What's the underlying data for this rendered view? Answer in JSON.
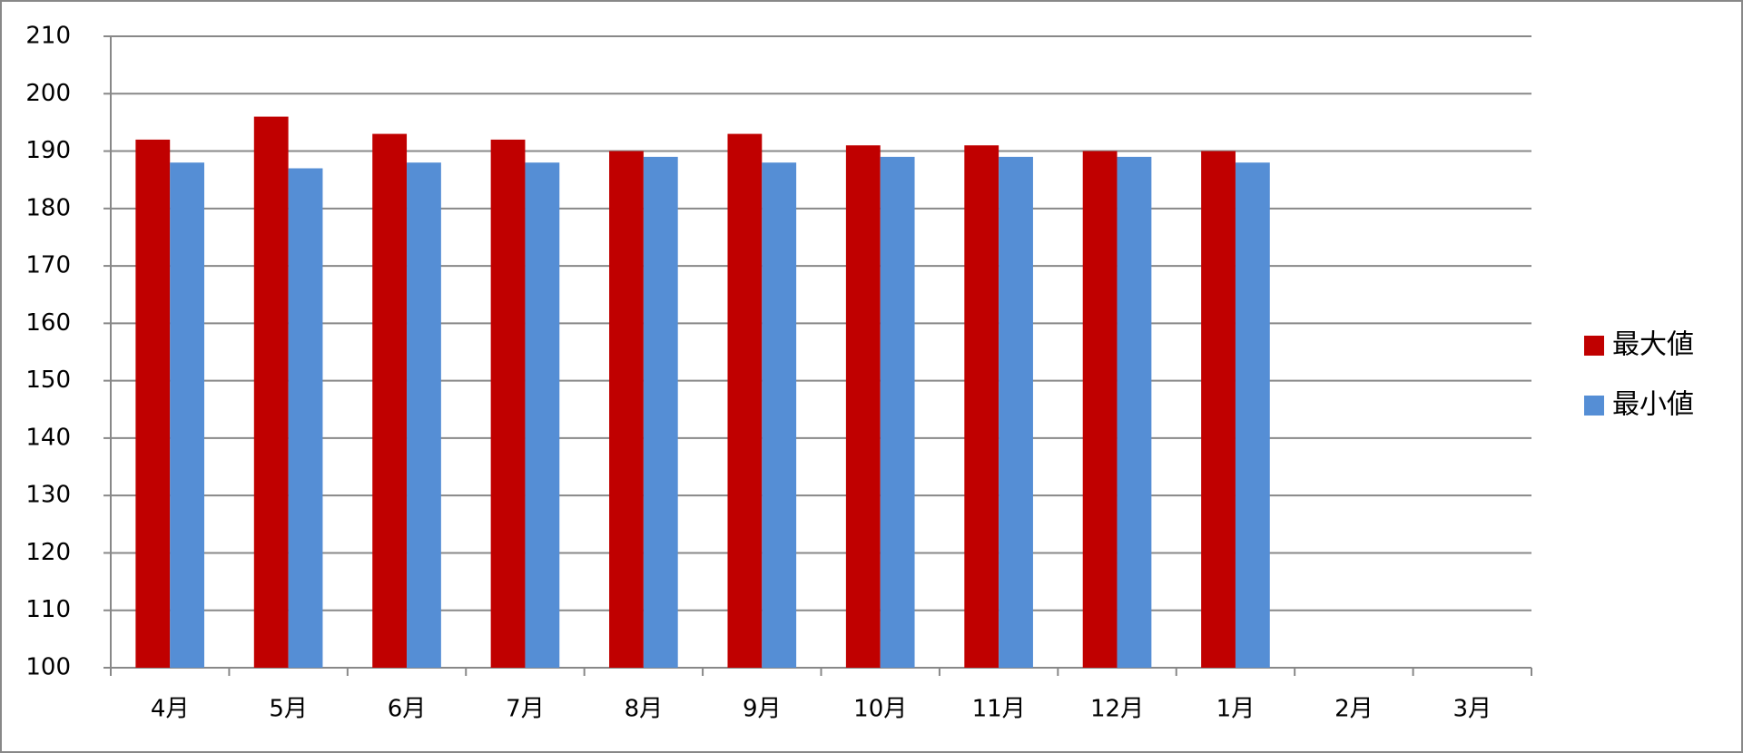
{
  "chart_data": {
    "type": "bar",
    "categories": [
      "4月",
      "5月",
      "6月",
      "7月",
      "8月",
      "9月",
      "10月",
      "11月",
      "12月",
      "1月",
      "2月",
      "3月"
    ],
    "series": [
      {
        "name": "最大値",
        "color": "#c00000",
        "values": [
          192,
          196,
          193,
          192,
          190,
          193,
          191,
          191,
          190,
          190,
          null,
          null
        ]
      },
      {
        "name": "最小値",
        "color": "#558ed5",
        "values": [
          188,
          187,
          188,
          188,
          189,
          188,
          189,
          189,
          189,
          188,
          null,
          null
        ]
      }
    ],
    "ylim": [
      100,
      210
    ],
    "yticks": [
      100,
      110,
      120,
      130,
      140,
      150,
      160,
      170,
      180,
      190,
      200,
      210
    ],
    "grid": true,
    "legend": "right"
  }
}
